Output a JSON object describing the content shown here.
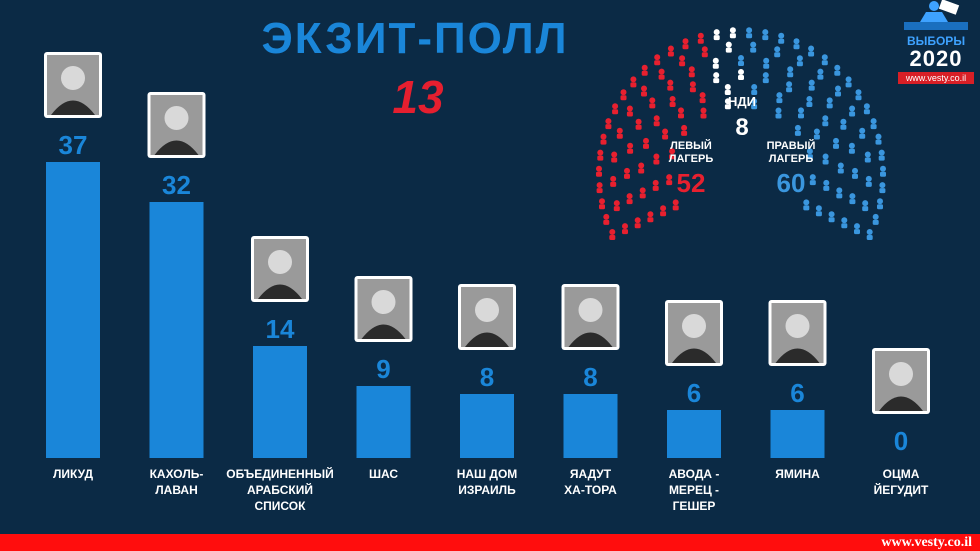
{
  "header": {
    "title": "ЭКЗИТ-ПОЛЛ",
    "channel": "13"
  },
  "logo": {
    "word": "ВЫБОРЫ",
    "year": "2020",
    "url": "www.vesty.co.il"
  },
  "footer": {
    "url": "www.vesty.co.il"
  },
  "parliament": {
    "left": {
      "label_line1": "ЛЕВЫЙ",
      "label_line2": "ЛАГЕРЬ",
      "value": 52,
      "color": "#e8202f"
    },
    "center": {
      "label": "НДИ",
      "value": 8,
      "color": "#ffffff"
    },
    "right": {
      "label_line1": "ПРАВЫЙ",
      "label_line2": "ЛАГЕРЬ",
      "value": 60,
      "color": "#3a96de"
    }
  },
  "colors": {
    "bar": "#1a86d9",
    "value_text": "#1a86d9",
    "label_text": "#ffffff",
    "background": "#0b2a45",
    "accent_red": "#e51f2f"
  },
  "chart_data": {
    "type": "bar",
    "title": "ЭКЗИТ-ПОЛЛ",
    "categories": [
      "ЛИКУД",
      "КАХОЛЬ-ЛАВАН",
      "ОБЪЕДИНЕННЫЙ АРАБСКИЙ СПИСОК",
      "ШАС",
      "НАШ ДОМ ИЗРАИЛЬ",
      "ЯАДУТ ХА-ТОРА",
      "АВОДА - МЕРЕЦ - ГЕШЕР",
      "ЯМИНА",
      "ОЦМА ЙЕГУДИТ"
    ],
    "label_lines": [
      [
        "ЛИКУД"
      ],
      [
        "КАХОЛЬ-",
        "ЛАВАН"
      ],
      [
        "ОБЪЕДИНЕННЫЙ",
        "АРАБСКИЙ",
        "СПИСОК"
      ],
      [
        "ШАС"
      ],
      [
        "НАШ ДОМ",
        "ИЗРАИЛЬ"
      ],
      [
        "ЯАДУТ",
        "ХА-ТОРА"
      ],
      [
        "АВОДА -",
        "МЕРЕЦ -",
        "ГЕШЕР"
      ],
      [
        "ЯМИНА"
      ],
      [
        "ОЦМА",
        "ЙЕГУДИТ"
      ]
    ],
    "values": [
      37,
      32,
      14,
      9,
      8,
      8,
      6,
      6,
      0
    ],
    "xlabel": "",
    "ylabel": "",
    "ylim": [
      0,
      37
    ]
  }
}
